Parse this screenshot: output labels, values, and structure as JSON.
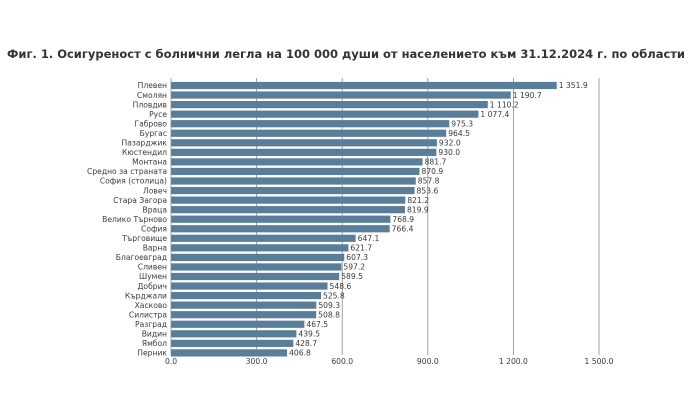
{
  "chart_data": {
    "type": "bar",
    "orientation": "horizontal",
    "title": "Фиг. 1. Осигуреност с болнични легла на 100 000 души от населението към 31.12.2024 г. по области",
    "xlabel": "",
    "ylabel": "",
    "xlim": [
      0,
      1500
    ],
    "xticks": [
      0,
      300,
      600,
      900,
      1200,
      1500
    ],
    "xtick_labels": [
      "0.0",
      "300.0",
      "600.0",
      "900.0",
      "1 200.0",
      "1 500.0"
    ],
    "grid": true,
    "bar_color": "#587e9b",
    "categories": [
      "Плевен",
      "Смолян",
      "Пловдив",
      "Русе",
      "Габрово",
      "Бургас",
      "Пазарджик",
      "Кюстендил",
      "Монтана",
      "Средно за страната",
      "София (столица)",
      "Ловеч",
      "Стара Загора",
      "Враца",
      "Велико Търново",
      "София",
      "Търговище",
      "Варна",
      "Благоевград",
      "Сливен",
      "Шумен",
      "Добрич",
      "Кърджали",
      "Хасково",
      "Силистра",
      "Разград",
      "Видин",
      "Ямбол",
      "Перник"
    ],
    "values": [
      1351.9,
      1190.7,
      1110.2,
      1077.4,
      975.3,
      964.5,
      932.0,
      930.0,
      881.7,
      870.9,
      857.8,
      853.6,
      821.2,
      819.9,
      768.9,
      766.4,
      647.1,
      621.7,
      607.3,
      597.2,
      589.5,
      548.6,
      525.8,
      509.3,
      508.8,
      467.5,
      439.5,
      428.7,
      406.8
    ],
    "value_labels": [
      "1 351.9",
      "1 190.7",
      "1 110.2",
      "1 077.4",
      "975.3",
      "964.5",
      "932.0",
      "930.0",
      "881.7",
      "870.9",
      "857.8",
      "853.6",
      "821.2",
      "819.9",
      "768.9",
      "766.4",
      "647.1",
      "621.7",
      "607.3",
      "597.2",
      "589.5",
      "548.6",
      "525.8",
      "509.3",
      "508.8",
      "467.5",
      "439.5",
      "428.7",
      "406.8"
    ]
  }
}
